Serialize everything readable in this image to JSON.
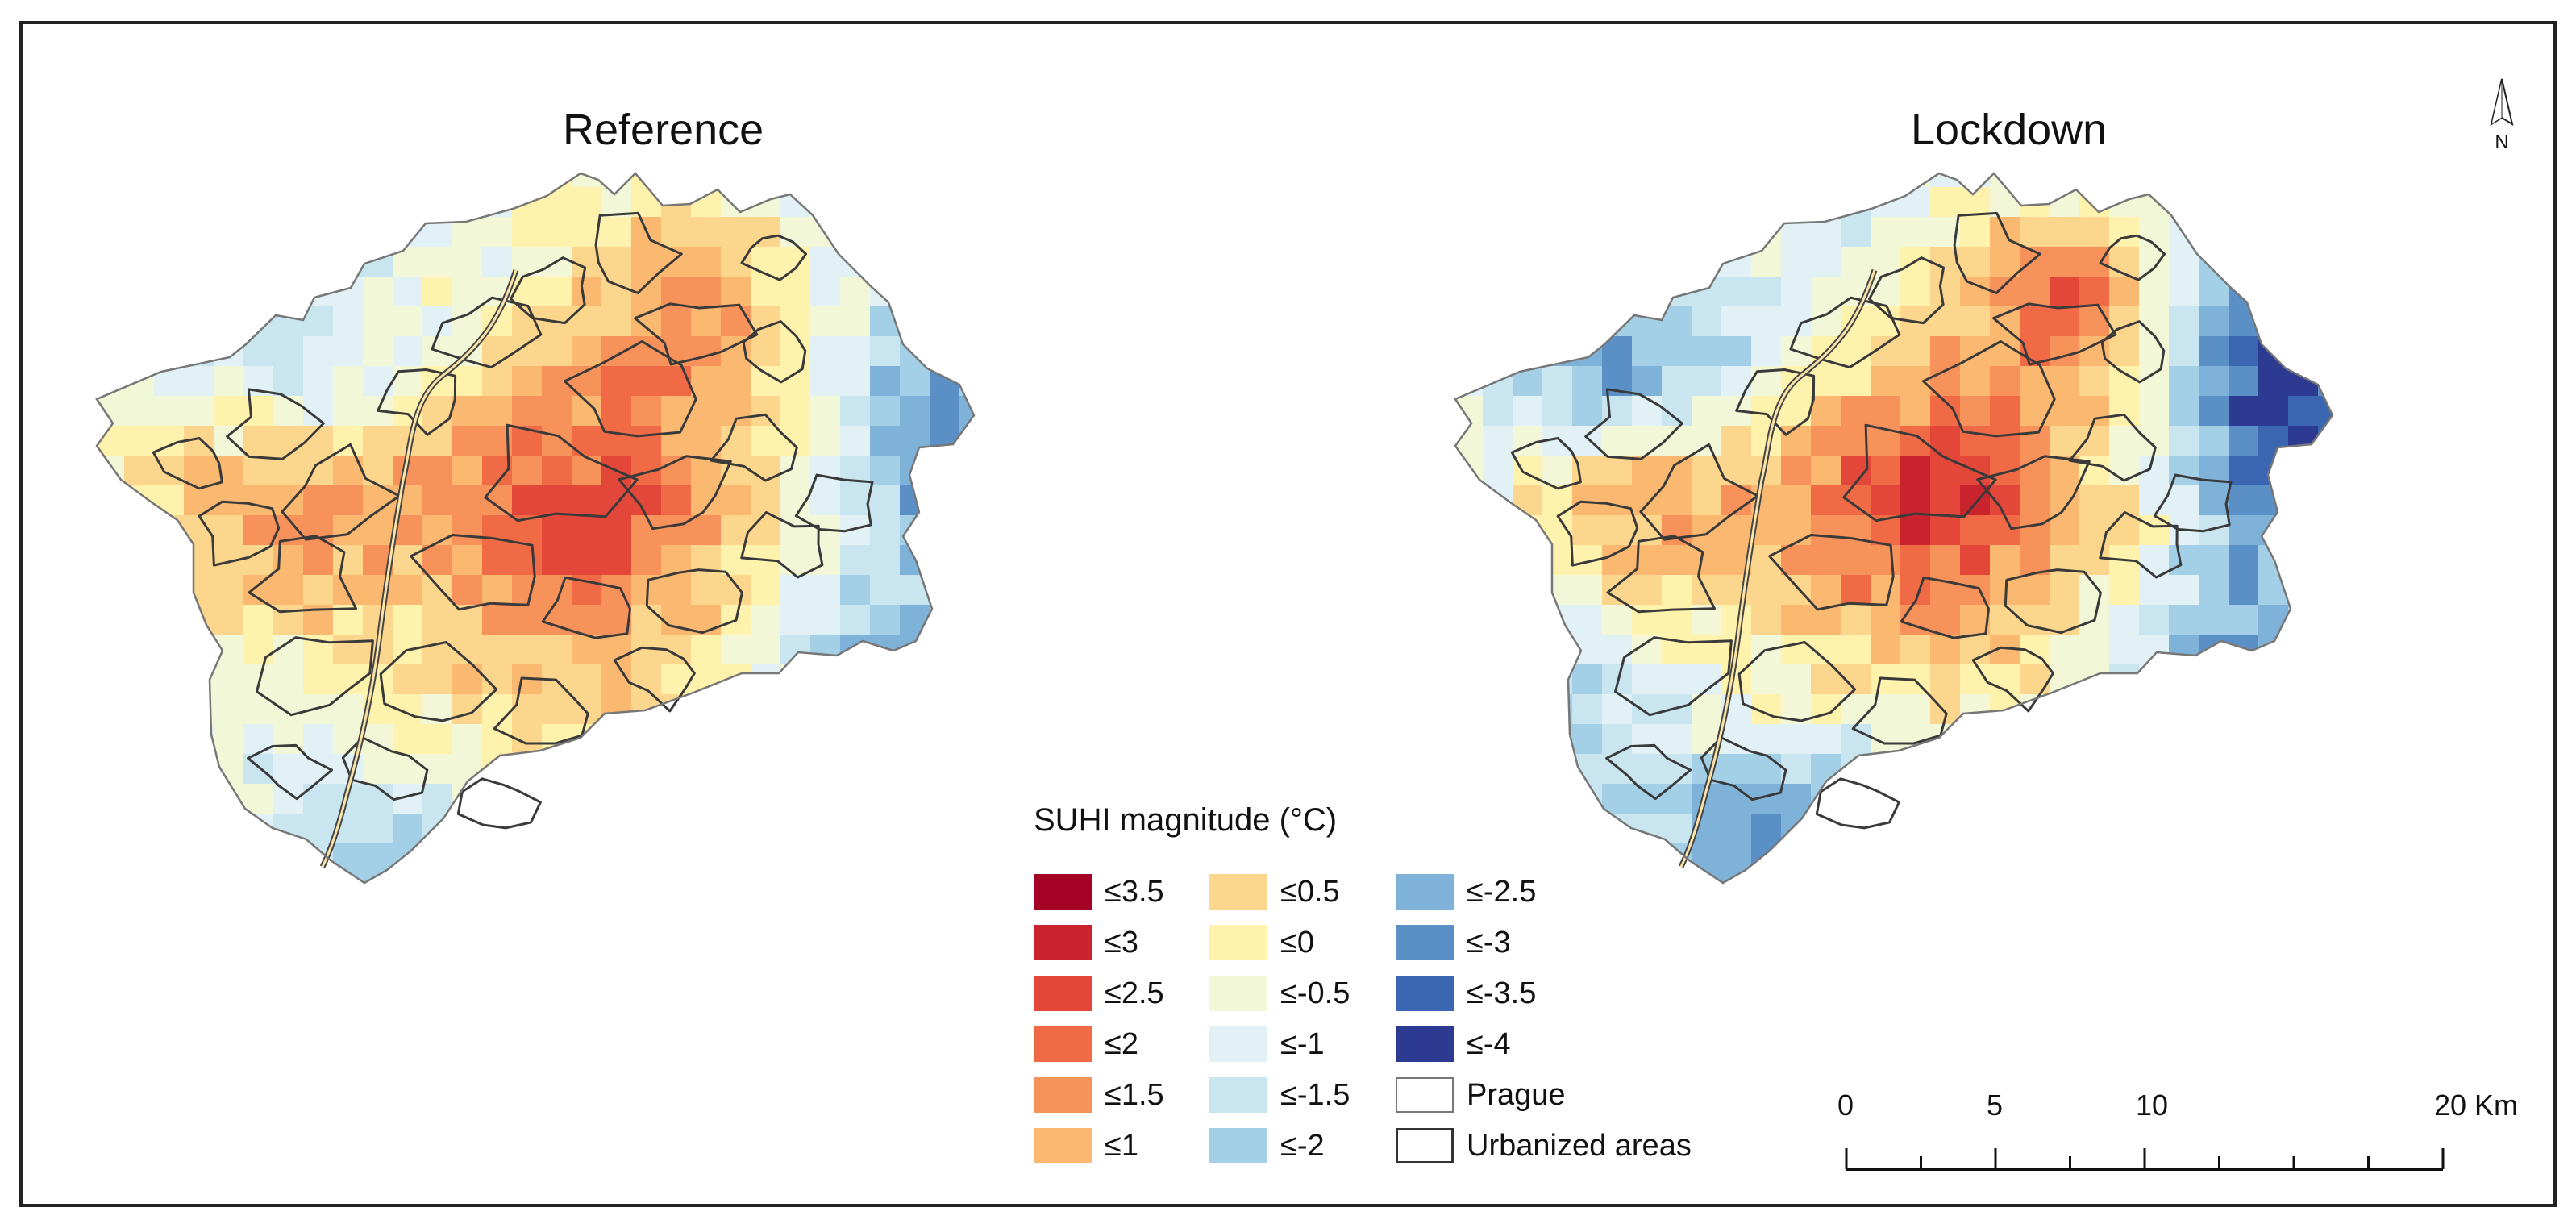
{
  "figure": {
    "panels": [
      {
        "id": "reference",
        "title": "Reference"
      },
      {
        "id": "lockdown",
        "title": "Lockdown"
      }
    ],
    "north_arrow": {
      "label": "N",
      "icon": "north-arrow-icon"
    }
  },
  "legend": {
    "title": "SUHI magnitude (°C)",
    "classes": [
      {
        "label": "≤3.5",
        "color": "#a50026"
      },
      {
        "label": "≤3",
        "color": "#c9232d"
      },
      {
        "label": "≤2.5",
        "color": "#e2473a"
      },
      {
        "label": "≤2",
        "color": "#f06b45"
      },
      {
        "label": "≤1.5",
        "color": "#f7925a"
      },
      {
        "label": "≤1",
        "color": "#fbb870"
      },
      {
        "label": "≤0.5",
        "color": "#fdd68e"
      },
      {
        "label": "≤0",
        "color": "#fff2ad"
      },
      {
        "label": "≤-0.5",
        "color": "#f2f8d7"
      },
      {
        "label": "≤-1",
        "color": "#e1f1f6"
      },
      {
        "label": "≤-1.5",
        "color": "#c8e5f0"
      },
      {
        "label": "≤-2",
        "color": "#a3d0e6"
      },
      {
        "label": "≤-2.5",
        "color": "#7fb2d8"
      },
      {
        "label": "≤-3",
        "color": "#5a90c6"
      },
      {
        "label": "≤-3.5",
        "color": "#3b66b1"
      },
      {
        "label": "≤-4",
        "color": "#2c3a92"
      }
    ],
    "outlines": [
      {
        "label": "Prague",
        "icon": "prague-boundary-swatch"
      },
      {
        "label": "Urbanized areas",
        "icon": "urbanized-areas-swatch"
      }
    ]
  },
  "scale_bar": {
    "unit": "Km",
    "ticks": [
      {
        "value": 0,
        "label": "0"
      },
      {
        "value": 5,
        "label": "5"
      },
      {
        "value": 10,
        "label": "10"
      },
      {
        "value": 20,
        "label": "20 Km"
      }
    ],
    "max": 20,
    "minor_step": 2.5
  }
}
